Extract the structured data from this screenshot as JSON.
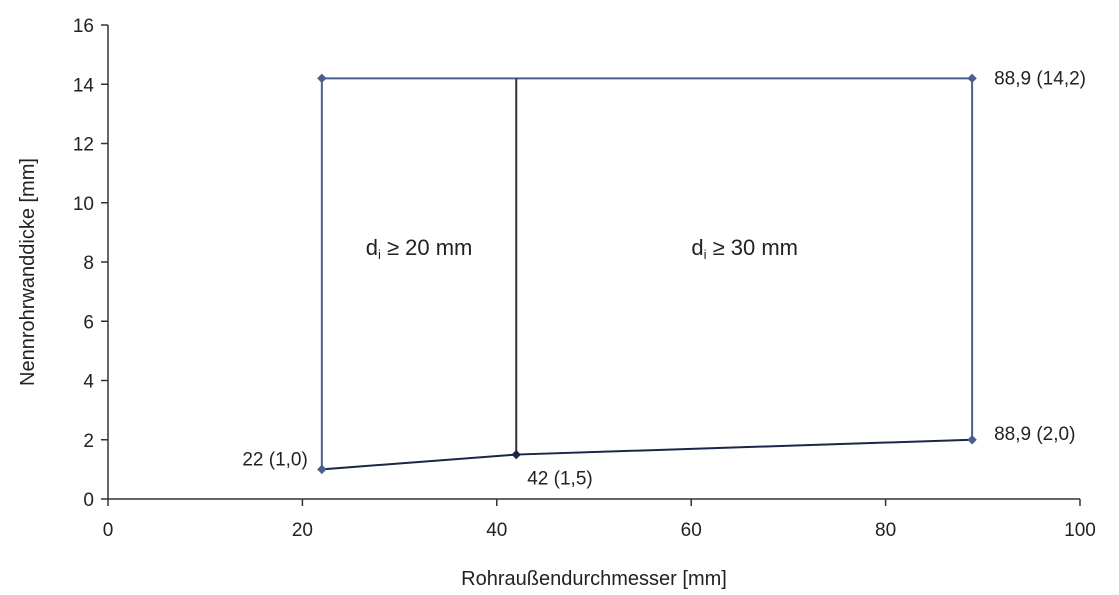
{
  "chart_data": {
    "type": "line",
    "xlabel": "Rohraußendurchmesser [mm]",
    "ylabel": "Nennrohrwanddicke [mm]",
    "xlim": [
      0,
      100
    ],
    "ylim": [
      0,
      16
    ],
    "xticks": [
      0,
      20,
      40,
      60,
      80,
      100
    ],
    "yticks": [
      0,
      2,
      4,
      6,
      8,
      10,
      12,
      14,
      16
    ],
    "grid": false,
    "series": [
      {
        "color": "#4a5f8f",
        "points": [
          [
            22,
            1.0
          ],
          [
            22,
            14.2
          ],
          [
            88.9,
            14.2
          ],
          [
            88.9,
            2.0
          ]
        ]
      },
      {
        "color": "#1a2548",
        "points": [
          [
            22,
            1.0
          ],
          [
            42,
            1.5
          ],
          [
            88.9,
            2.0
          ]
        ]
      },
      {
        "color": "#333333",
        "points": [
          [
            42,
            1.5
          ],
          [
            42,
            14.2
          ]
        ]
      }
    ],
    "markers": [
      {
        "x": 22,
        "y": 14.2,
        "color": "#4a5f8f"
      },
      {
        "x": 88.9,
        "y": 14.2,
        "color": "#4a5f8f"
      },
      {
        "x": 22,
        "y": 1.0,
        "color": "#4a5f8f"
      },
      {
        "x": 42,
        "y": 1.5,
        "color": "#1a2548"
      },
      {
        "x": 88.9,
        "y": 2.0,
        "color": "#4a5f8f"
      }
    ],
    "annotations": [
      {
        "text": "88,9 (14,2)",
        "x": 88.9,
        "y": 14.2,
        "anchor": "right"
      },
      {
        "text": "22 (1,0)",
        "x": 22,
        "y": 1.0,
        "anchor": "left"
      },
      {
        "text": "42 (1,5)",
        "x": 42,
        "y": 1.5,
        "anchor": "below"
      },
      {
        "text": "88,9 (2,0)",
        "x": 88.9,
        "y": 2.0,
        "anchor": "right"
      }
    ],
    "regions": [
      {
        "main": "d",
        "sub": "i",
        "rest": " ≥ 20 mm",
        "x": 32,
        "y": 8.5
      },
      {
        "main": "d",
        "sub": "i",
        "rest": " ≥ 30 mm",
        "x": 65.5,
        "y": 8.5
      }
    ]
  }
}
